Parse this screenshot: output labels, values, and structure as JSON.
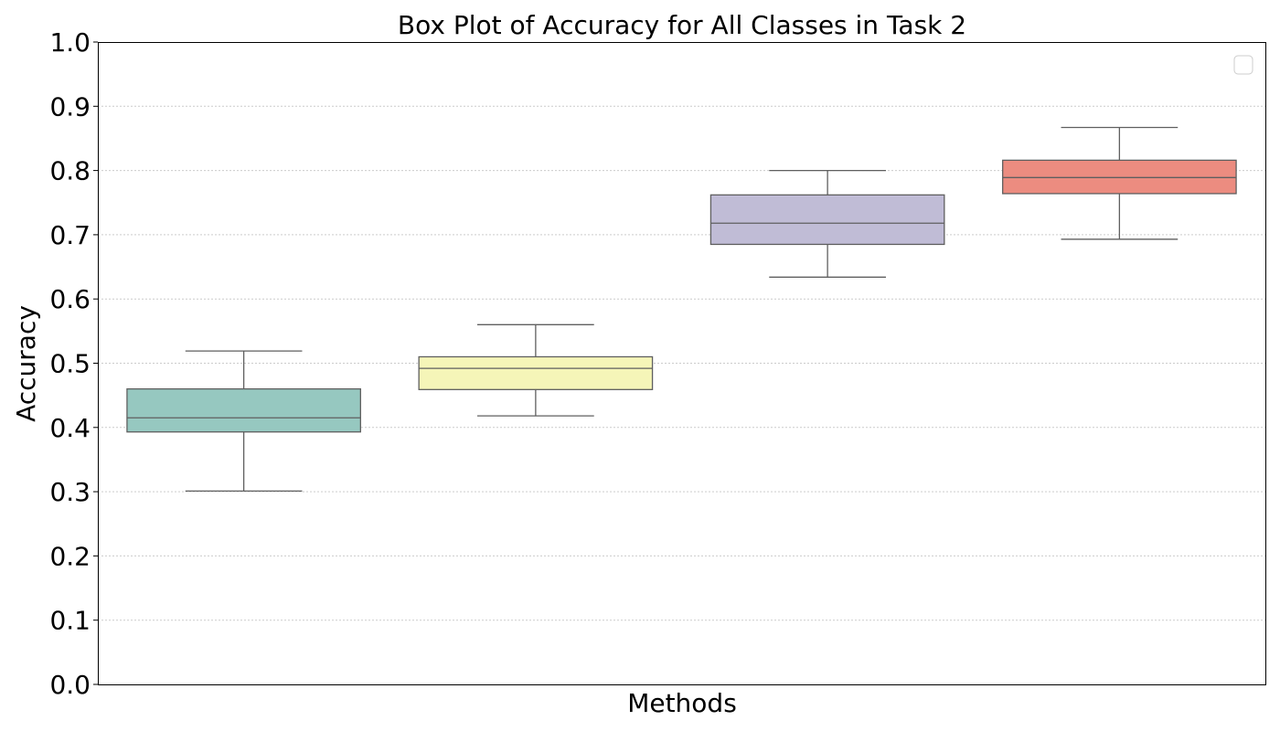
{
  "chart_data": {
    "type": "box",
    "title": "Box Plot of Accuracy for All Classes in Task 2",
    "xlabel": "Methods",
    "ylabel": "Accuracy",
    "ylim": [
      0.0,
      1.0
    ],
    "yticks": [
      "0.0",
      "0.1",
      "0.2",
      "0.3",
      "0.4",
      "0.5",
      "0.6",
      "0.7",
      "0.8",
      "0.9",
      "1.0"
    ],
    "grid": "y-dotted",
    "legend": {
      "placement": "top-right",
      "entries": []
    },
    "boxes": [
      {
        "whisker_low": 0.301,
        "q1": 0.393,
        "median": 0.415,
        "q3": 0.46,
        "whisker_high": 0.519,
        "color": "#96c8c0"
      },
      {
        "whisker_low": 0.418,
        "q1": 0.459,
        "median": 0.492,
        "q3": 0.51,
        "whisker_high": 0.56,
        "color": "#f5f5b8"
      },
      {
        "whisker_low": 0.634,
        "q1": 0.685,
        "median": 0.718,
        "q3": 0.762,
        "whisker_high": 0.8,
        "color": "#c0bcd6"
      },
      {
        "whisker_low": 0.693,
        "q1": 0.764,
        "median": 0.789,
        "q3": 0.816,
        "whisker_high": 0.867,
        "color": "#ec8c80"
      }
    ]
  }
}
